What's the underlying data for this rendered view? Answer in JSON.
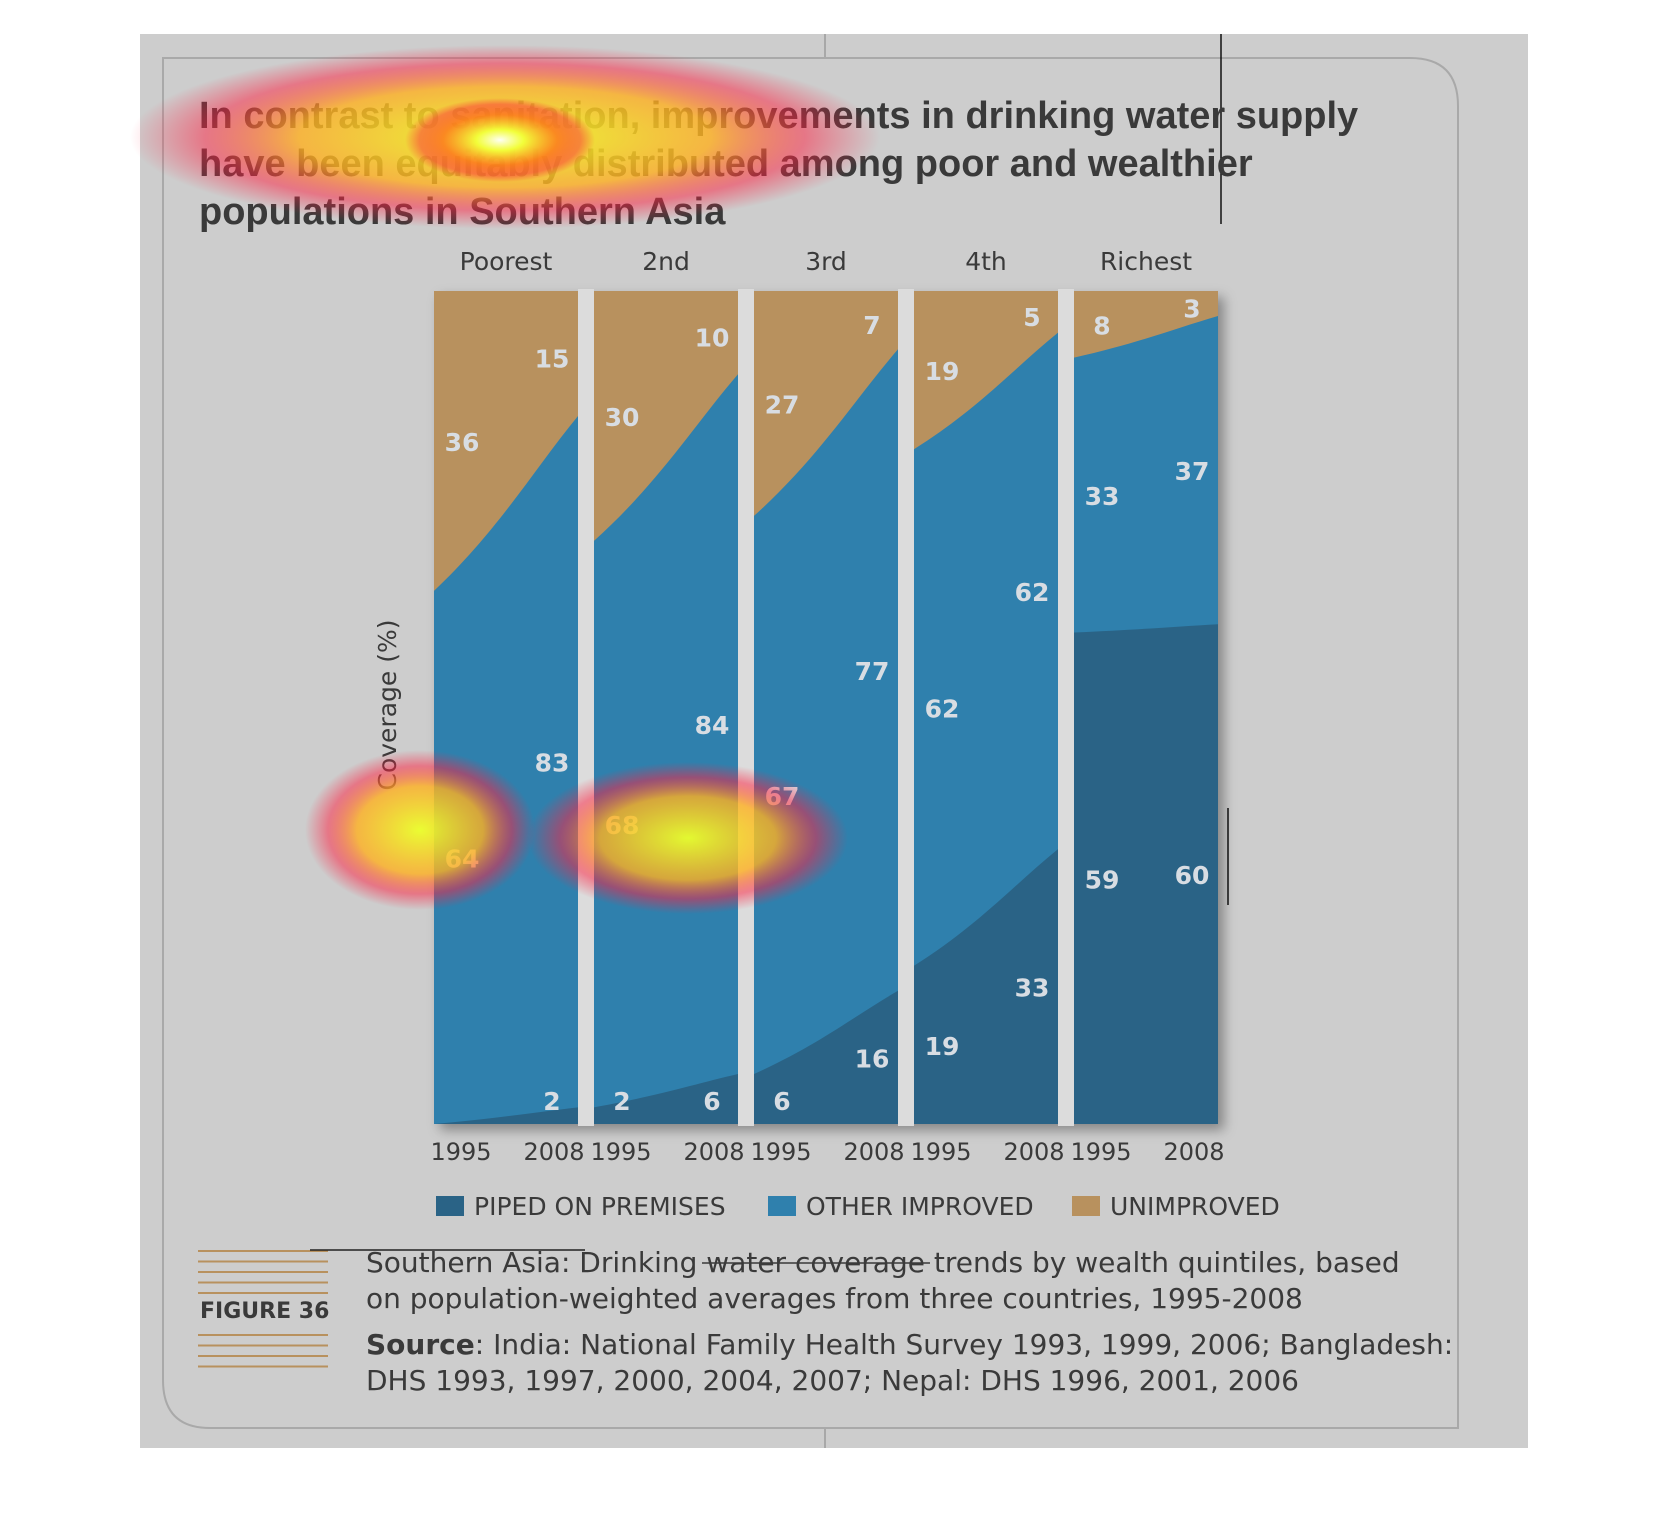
{
  "title_lines": [
    "In contrast to sanitation, improvements in drinking water supply",
    "have been equitably distributed among poor and wealthier",
    "populations in Southern Asia"
  ],
  "y_axis_label": "Coverage (%)",
  "colors": {
    "piped": "#2a6386",
    "other": "#2f80ad",
    "unimproved": "#b8915e",
    "background": "#cdcdcd",
    "separator": "#dcdcdc"
  },
  "legend": [
    {
      "label": "PIPED ON PREMISES",
      "color": "#2a6386"
    },
    {
      "label": "OTHER IMPROVED",
      "color": "#2f80ad"
    },
    {
      "label": "UNIMPROVED",
      "color": "#b8915e"
    }
  ],
  "figure": {
    "label": "FIGURE 36",
    "caption_lines": [
      "Southern Asia: Drinking water coverage trends by wealth quintiles, based",
      "on population-weighted averages from three countries, 1995-2008"
    ],
    "source_label": "Source",
    "source_lines": [
      ": India: National Family Health Survey 1993, 1999, 2006; Bangladesh:",
      "DHS 1993, 1997, 2000, 2004, 2007; Nepal: DHS 1996, 2001, 2006"
    ]
  },
  "chart_data": {
    "type": "area",
    "stacked": true,
    "ylim": [
      0,
      100
    ],
    "years": [
      "1995",
      "2008"
    ],
    "panels": [
      {
        "name": "Poorest",
        "piped": [
          0,
          2
        ],
        "other": [
          64,
          83
        ],
        "unimproved": [
          36,
          15
        ],
        "labels": {
          "piped": [
            "",
            "2"
          ],
          "other": [
            "64",
            "83"
          ],
          "unimproved": [
            "36",
            "15"
          ]
        }
      },
      {
        "name": "2nd",
        "piped": [
          2,
          6
        ],
        "other": [
          68,
          84
        ],
        "unimproved": [
          30,
          10
        ],
        "labels": {
          "piped": [
            "2",
            "6"
          ],
          "other": [
            "68",
            "84"
          ],
          "unimproved": [
            "30",
            "10"
          ]
        }
      },
      {
        "name": "3rd",
        "piped": [
          6,
          16
        ],
        "other": [
          67,
          77
        ],
        "unimproved": [
          27,
          7
        ],
        "labels": {
          "piped": [
            "6",
            "16"
          ],
          "other": [
            "67",
            "77"
          ],
          "unimproved": [
            "27",
            "7"
          ]
        }
      },
      {
        "name": "4th",
        "piped": [
          19,
          33
        ],
        "other": [
          62,
          62
        ],
        "unimproved": [
          19,
          5
        ],
        "labels": {
          "piped": [
            "19",
            "33"
          ],
          "other": [
            "62",
            "62"
          ],
          "unimproved": [
            "19",
            "5"
          ]
        }
      },
      {
        "name": "Richest",
        "piped": [
          59,
          60
        ],
        "other": [
          33,
          37
        ],
        "unimproved": [
          8,
          3
        ],
        "labels": {
          "piped": [
            "59",
            "60"
          ],
          "other": [
            "33",
            "37"
          ],
          "unimproved": [
            "8",
            "3"
          ]
        }
      }
    ],
    "legend_placement": "bottom",
    "grid": false
  }
}
